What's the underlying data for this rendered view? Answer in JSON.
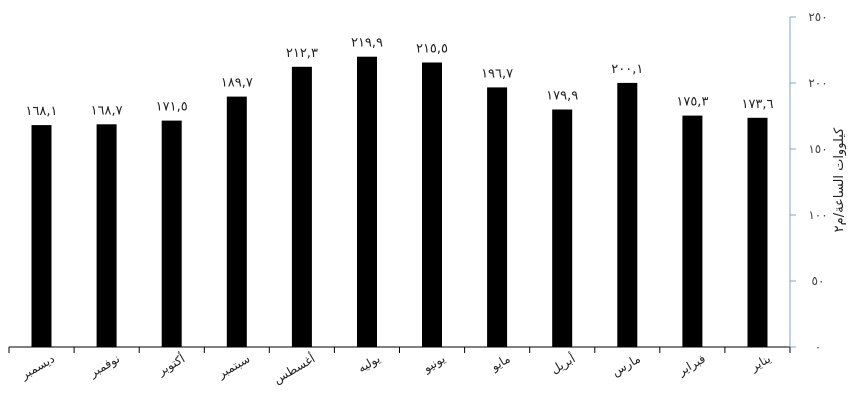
{
  "chart_data": {
    "type": "bar",
    "categories": [
      "يناير",
      "فبراير",
      "مارس",
      "أبريل",
      "مايو",
      "يونيو",
      "يوليه",
      "أغسطس",
      "سبتمبر",
      "أكتوبر",
      "نوفمبر",
      "ديسمبر"
    ],
    "values": [
      173.6,
      175.3,
      200.1,
      179.9,
      196.7,
      215.5,
      219.9,
      212.3,
      189.7,
      171.5,
      168.7,
      168.1
    ],
    "value_labels": [
      "١٧٣,٦",
      "١٧٥,٣",
      "٢٠٠,١",
      "١٧٩,٩",
      "١٩٦,٧",
      "٢١٥,٥",
      "٢١٩,٩",
      "٢١٢,٣",
      "١٨٩,٧",
      "١٧١,٥",
      "١٦٨,٧",
      "١٦٨,١"
    ],
    "y_ticks": [
      0,
      50,
      100,
      150,
      200,
      250
    ],
    "y_tick_labels": [
      "٠",
      "٥٠",
      "١٠٠",
      "١٥٠",
      "٢٠٠",
      "٢٥٠"
    ],
    "ylim": [
      0,
      250
    ],
    "ylabel": "كيلووات الساعة/م٢",
    "x_direction": "right-to-left",
    "y_axis_side": "right",
    "bar_color": "#000000",
    "axis_color": "#7fa7c9",
    "grid": false
  }
}
